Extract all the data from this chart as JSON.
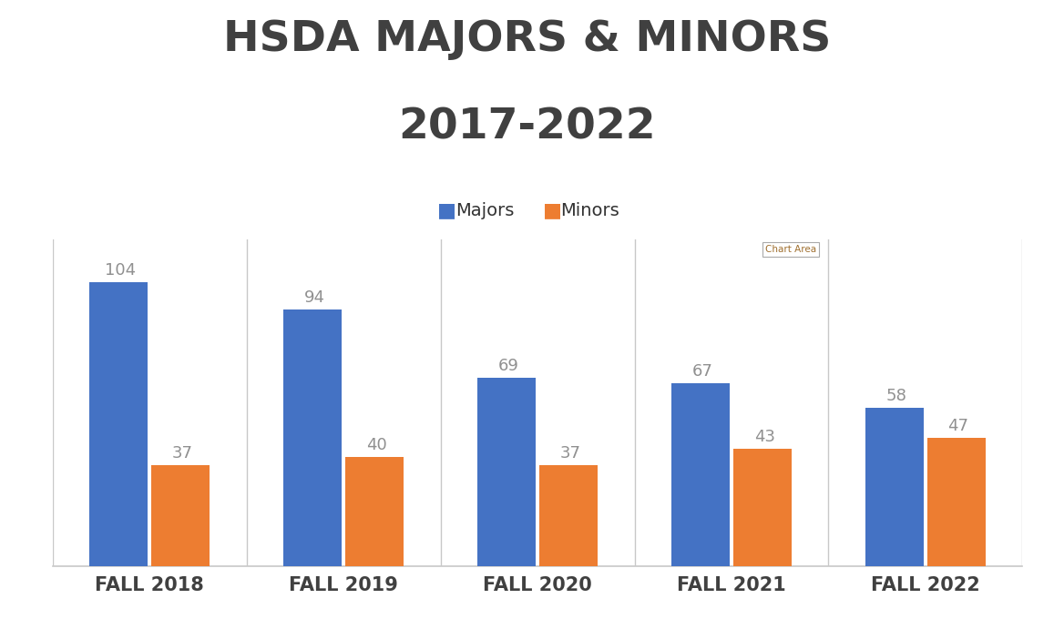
{
  "title_line1": "HSDA MAJORS & MINORS",
  "title_line2": "2017-2022",
  "categories": [
    "FALL 2018",
    "FALL 2019",
    "FALL 2020",
    "FALL 2021",
    "FALL 2022"
  ],
  "majors": [
    104,
    94,
    69,
    67,
    58
  ],
  "minors": [
    37,
    40,
    37,
    43,
    47
  ],
  "major_color": "#4472C4",
  "minor_color": "#ED7D31",
  "bar_width": 0.3,
  "ylim": [
    0,
    120
  ],
  "title1_fontsize": 34,
  "title2_fontsize": 34,
  "xlabel_fontsize": 15,
  "legend_fontsize": 14,
  "annotation_fontsize": 13,
  "annotation_color": "#909090",
  "title_color": "#404040",
  "background_color": "#ffffff",
  "chart_area_label": "Chart Area",
  "divider_color": "#c8c8c8",
  "spine_color": "#c8c8c8"
}
